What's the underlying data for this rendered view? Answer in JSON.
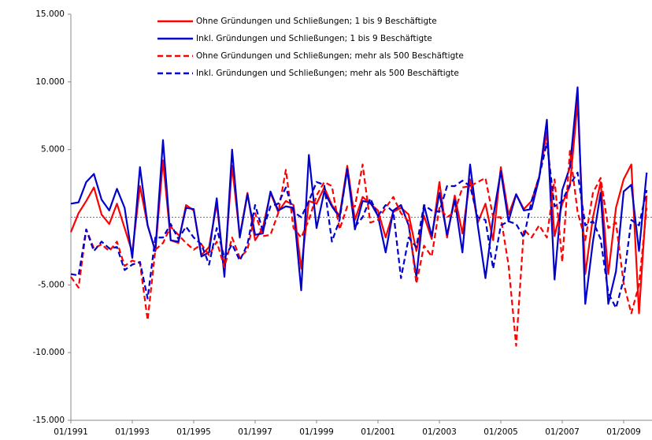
{
  "chart_data": {
    "type": "line",
    "legend": "top",
    "categories": [
      "01/1991",
      null,
      null,
      null,
      null,
      null,
      null,
      null,
      "01/1993",
      null,
      null,
      null,
      null,
      null,
      null,
      null,
      "01/1995",
      null,
      null,
      null,
      null,
      null,
      null,
      null,
      "01/1997",
      null,
      null,
      null,
      null,
      null,
      null,
      null,
      "01/1999",
      null,
      null,
      null,
      null,
      null,
      null,
      null,
      "01/2001",
      null,
      null,
      null,
      null,
      null,
      null,
      null,
      "01/2003",
      null,
      null,
      null,
      null,
      null,
      null,
      null,
      "01/2005",
      null,
      null,
      null,
      null,
      null,
      null,
      null,
      "01/2007",
      null,
      null,
      null,
      null,
      null,
      null,
      null,
      "01/2009",
      null,
      null,
      null
    ],
    "ylim": [
      -15000,
      15000
    ],
    "yticks": [
      {
        "value": 15000,
        "label": "15.000"
      },
      {
        "value": 10000,
        "label": "10.000"
      },
      {
        "value": 5000,
        "label": "5.000"
      },
      {
        "value": -5000,
        "label": "-5.000"
      },
      {
        "value": -10000,
        "label": "-10.000"
      },
      {
        "value": -15000,
        "label": "-15.000"
      }
    ],
    "series": [
      {
        "name": "Ohne Gründungen und Schließungen; 1 bis 9 Beschäftigte",
        "color": "#ff0000",
        "dashed": false,
        "values": [
          -1100,
          300,
          1200,
          2200,
          200,
          -500,
          1000,
          -800,
          -2600,
          2300,
          -600,
          -2500,
          4200,
          -1700,
          -1900,
          900,
          500,
          -2800,
          -2200,
          1000,
          -3900,
          3800,
          -1400,
          1800,
          -1700,
          -800,
          1800,
          400,
          1200,
          900,
          -3800,
          1200,
          1000,
          2200,
          900,
          100,
          3800,
          -200,
          1500,
          1000,
          500,
          -1500,
          400,
          700,
          200,
          -2500,
          100,
          -1600,
          2600,
          -1500,
          1600,
          -1200,
          2800,
          -400,
          1000,
          -1700,
          3700,
          200,
          1700,
          600,
          1200,
          3000,
          6300,
          -1400,
          1000,
          2300,
          8500,
          -4200,
          0,
          2600,
          -4200,
          700,
          2800,
          3900,
          -7100,
          1600
        ]
      },
      {
        "name": "Inkl. Gründungen und Schließungen; 1 bis 9 Beschäftigte",
        "color": "#0000cc",
        "dashed": false,
        "values": [
          1000,
          1100,
          2600,
          3200,
          1300,
          500,
          2100,
          700,
          -3000,
          3700,
          -600,
          -2500,
          5700,
          -1700,
          -1800,
          700,
          600,
          -2900,
          -2600,
          1400,
          -4400,
          5000,
          -1500,
          1700,
          -1300,
          -1200,
          1900,
          500,
          800,
          700,
          -5400,
          4600,
          -800,
          1900,
          800,
          0,
          3500,
          -900,
          1200,
          1100,
          100,
          -2600,
          500,
          900,
          -600,
          -4400,
          900,
          -1400,
          1800,
          -1300,
          1300,
          -2600,
          3900,
          -600,
          -4500,
          0,
          3400,
          -300,
          1700,
          500,
          600,
          2900,
          7200,
          -4600,
          2000,
          3700,
          9600,
          -6400,
          -1800,
          1800,
          -6400,
          -4000,
          1900,
          2400,
          -2500,
          3300
        ]
      },
      {
        "name": "Ohne Gründungen und Schließungen; mehr als 500 Beschäftigte",
        "color": "#ff0000",
        "dashed": true,
        "values": [
          -4400,
          -5200,
          -900,
          -2300,
          -2000,
          -2500,
          -1800,
          -3600,
          -3200,
          -3400,
          -7600,
          -2400,
          -1900,
          -700,
          -1300,
          -1900,
          -2400,
          -2000,
          -2800,
          -1800,
          -3700,
          -1500,
          -3000,
          -2400,
          300,
          -1400,
          -1300,
          300,
          3500,
          -800,
          -1500,
          -200,
          1600,
          2600,
          2300,
          -900,
          800,
          800,
          3900,
          -400,
          -200,
          700,
          1500,
          300,
          -300,
          -4900,
          -2100,
          -2900,
          700,
          0,
          400,
          2200,
          2300,
          2600,
          2900,
          0,
          0,
          -3500,
          -9500,
          -900,
          -1500,
          -600,
          -1500,
          2800,
          -3300,
          4900,
          400,
          -1700,
          1800,
          2900,
          -800,
          -400,
          -4900,
          -7100,
          -5000,
          700
        ]
      },
      {
        "name": "Inkl. Gründungen und Schließungen; mehr als 500 Beschäftigte",
        "color": "#0000cc",
        "dashed": true,
        "values": [
          -4200,
          -4300,
          -900,
          -2500,
          -1800,
          -2300,
          -2200,
          -3900,
          -3500,
          -3300,
          -6000,
          -1500,
          -1500,
          -500,
          -1600,
          -700,
          -1500,
          -2000,
          -3500,
          -800,
          -3000,
          -2000,
          -3200,
          -2000,
          900,
          -1000,
          800,
          1000,
          2200,
          400,
          0,
          1200,
          2600,
          2400,
          -1800,
          -200,
          3600,
          -700,
          0,
          1400,
          100,
          900,
          400,
          -4500,
          -1500,
          -2200,
          900,
          500,
          400,
          2300,
          2300,
          2700,
          2300,
          0,
          -200,
          -3800,
          -600,
          -300,
          -500,
          -1500,
          1200,
          3000,
          5500,
          800,
          1200,
          2400,
          3300,
          -600,
          -300,
          -1600,
          -5600,
          -6700,
          -4600,
          -200,
          -600,
          2000
        ]
      }
    ]
  }
}
